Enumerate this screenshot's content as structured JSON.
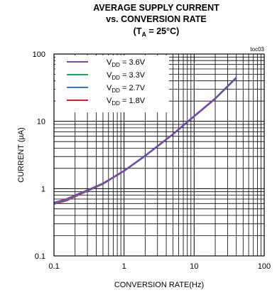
{
  "chart_data": {
    "type": "line",
    "title": {
      "line1": "AVERAGE SUPPLY CURRENT",
      "line2": "vs. CONVERSION RATE",
      "line3_prefix": "(T",
      "line3_sub": "A",
      "line3_suffix": " = 25°C)"
    },
    "tag": "toc03",
    "xlabel": "CONVERSION RATE(Hz)",
    "ylabel": "CURRENT (µA)",
    "xscale": "log",
    "yscale": "log",
    "xlim": [
      0.1,
      100
    ],
    "ylim": [
      0.1,
      100
    ],
    "xticks": [
      "0.1",
      "1",
      "10",
      "100"
    ],
    "yticks": [
      "0.1",
      "1",
      "10",
      "100"
    ],
    "grid": true,
    "legend_position": "top-left",
    "series": [
      {
        "name_prefix": "V",
        "name_sub": "DD",
        "name_suffix": " = 3.6V",
        "color": "#7b3fb8",
        "x": [
          0.1,
          0.15,
          0.2,
          0.3,
          0.5,
          1,
          2,
          5,
          10,
          20,
          40
        ],
        "y": [
          0.62,
          0.7,
          0.8,
          0.95,
          1.2,
          1.85,
          3.1,
          6.5,
          12,
          22,
          45
        ]
      },
      {
        "name_prefix": "V",
        "name_sub": "DD",
        "name_suffix": " = 3.3V",
        "color": "#22a84a",
        "x": [
          0.1,
          0.15,
          0.2,
          0.3,
          0.5,
          1,
          2,
          5,
          10,
          20,
          40
        ],
        "y": [
          0.61,
          0.69,
          0.79,
          0.94,
          1.19,
          1.84,
          3.08,
          6.45,
          11.9,
          21.8,
          44.6
        ]
      },
      {
        "name_prefix": "V",
        "name_sub": "DD",
        "name_suffix": " = 2.7V",
        "color": "#2a78c8",
        "x": [
          0.1,
          0.15,
          0.2,
          0.3,
          0.5,
          1,
          2,
          5,
          10,
          20,
          40
        ],
        "y": [
          0.6,
          0.68,
          0.78,
          0.93,
          1.18,
          1.83,
          3.06,
          6.4,
          11.8,
          21.6,
          44.2
        ]
      },
      {
        "name_prefix": "V",
        "name_sub": "DD",
        "name_suffix": " = 1.8V",
        "color": "#e02020",
        "x": [
          0.1,
          0.15,
          0.2,
          0.3,
          0.5,
          1,
          2,
          5,
          10,
          20,
          40
        ],
        "y": [
          0.59,
          0.66,
          0.76,
          0.92,
          1.17,
          1.82,
          3.05,
          6.38,
          11.75,
          21.5,
          44
        ]
      }
    ]
  }
}
